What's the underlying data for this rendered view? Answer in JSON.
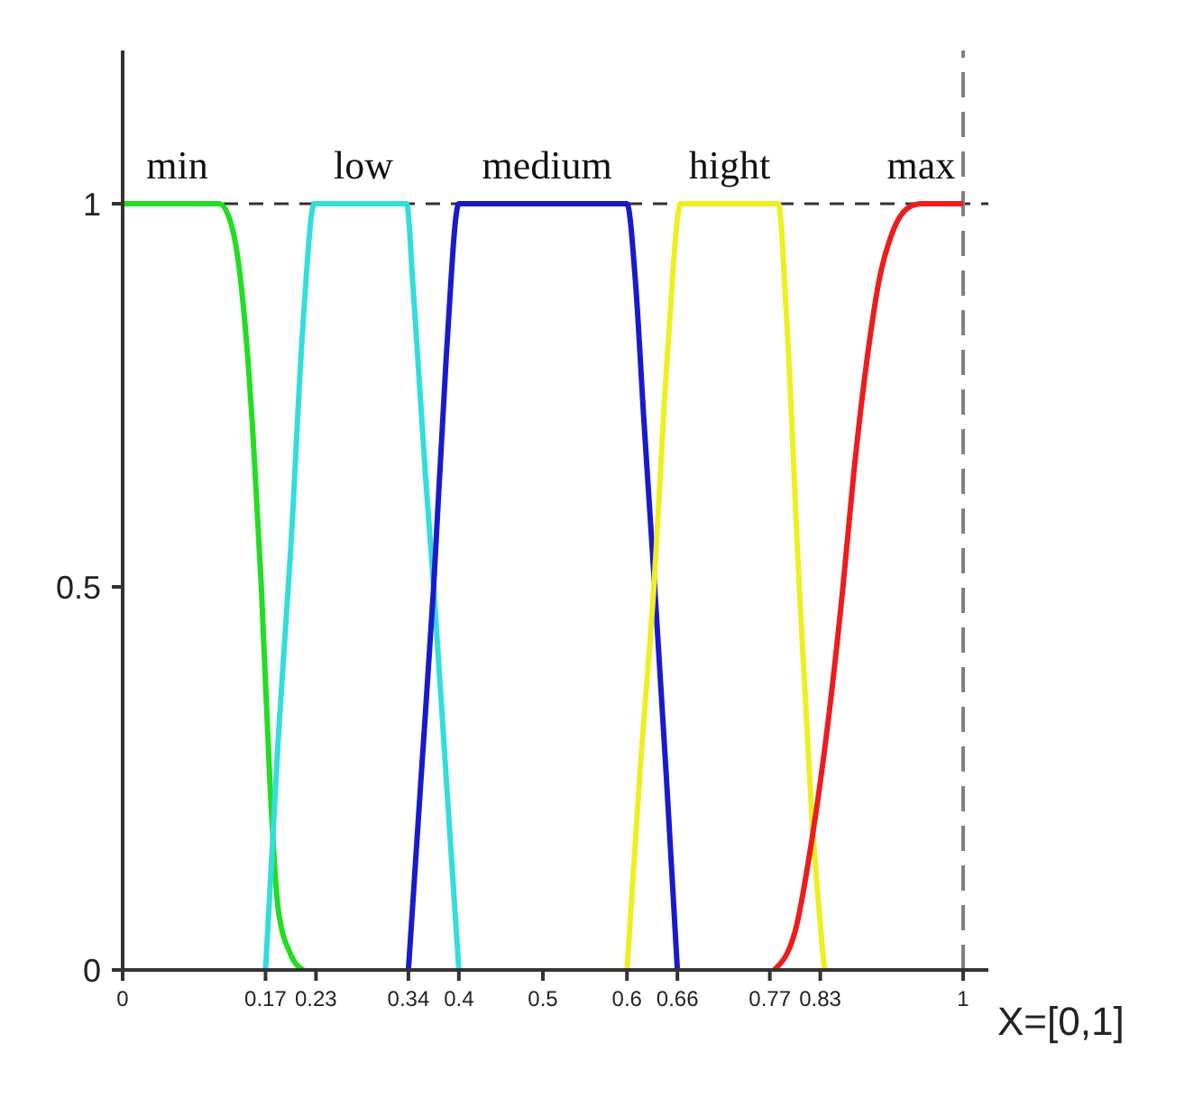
{
  "chart_data": {
    "type": "line",
    "xlabel": "X=[0,1]",
    "xlim": [
      0,
      1.03
    ],
    "xticks": [
      0,
      0.17,
      0.23,
      0.34,
      0.4,
      0.5,
      0.6,
      0.66,
      0.77,
      0.83,
      1
    ],
    "ylim": [
      0,
      1.2
    ],
    "yticks": [
      0,
      0.5,
      1
    ],
    "grid": false,
    "legend": false,
    "marker": "none",
    "line_style": "solid",
    "ref_lines": [
      {
        "axis": "y",
        "value": 1,
        "color": "#333333",
        "line_style": "dashed"
      },
      {
        "axis": "x",
        "value": 1,
        "color": "#808080",
        "line_style": "dashed"
      }
    ],
    "series": [
      {
        "name": "min",
        "color": "#22dd22",
        "x": [
          0,
          0.115,
          0.13,
          0.145,
          0.155,
          0.165,
          0.175,
          0.185,
          0.2,
          0.215
        ],
        "values": [
          1,
          1,
          0.97,
          0.85,
          0.7,
          0.5,
          0.25,
          0.08,
          0.02,
          0
        ]
      },
      {
        "name": "low",
        "color": "#33dddd",
        "x": [
          0.17,
          0.185,
          0.2,
          0.215,
          0.228,
          0.338,
          0.345,
          0.36,
          0.37,
          0.385,
          0.4
        ],
        "values": [
          0,
          0.3,
          0.55,
          0.85,
          1,
          1,
          0.9,
          0.65,
          0.5,
          0.25,
          0
        ]
      },
      {
        "name": "medium",
        "color": "#1a1acc",
        "x": [
          0.34,
          0.355,
          0.37,
          0.385,
          0.4,
          0.6,
          0.61,
          0.62,
          0.633,
          0.647,
          0.66
        ],
        "values": [
          0,
          0.25,
          0.5,
          0.8,
          1,
          1,
          0.9,
          0.72,
          0.5,
          0.25,
          0
        ]
      },
      {
        "name": "hight",
        "color": "#eeee22",
        "x": [
          0.6,
          0.615,
          0.632,
          0.648,
          0.664,
          0.78,
          0.79,
          0.805,
          0.82,
          0.835
        ],
        "values": [
          0,
          0.25,
          0.5,
          0.8,
          1,
          1,
          0.85,
          0.5,
          0.2,
          0
        ]
      },
      {
        "name": "max",
        "color": "#ee1c1c",
        "x": [
          0.775,
          0.8,
          0.82,
          0.84,
          0.857,
          0.87,
          0.886,
          0.9,
          0.915,
          0.935,
          0.95,
          1
        ],
        "values": [
          0,
          0.05,
          0.17,
          0.33,
          0.5,
          0.65,
          0.8,
          0.9,
          0.96,
          0.995,
          1,
          1
        ]
      }
    ]
  }
}
